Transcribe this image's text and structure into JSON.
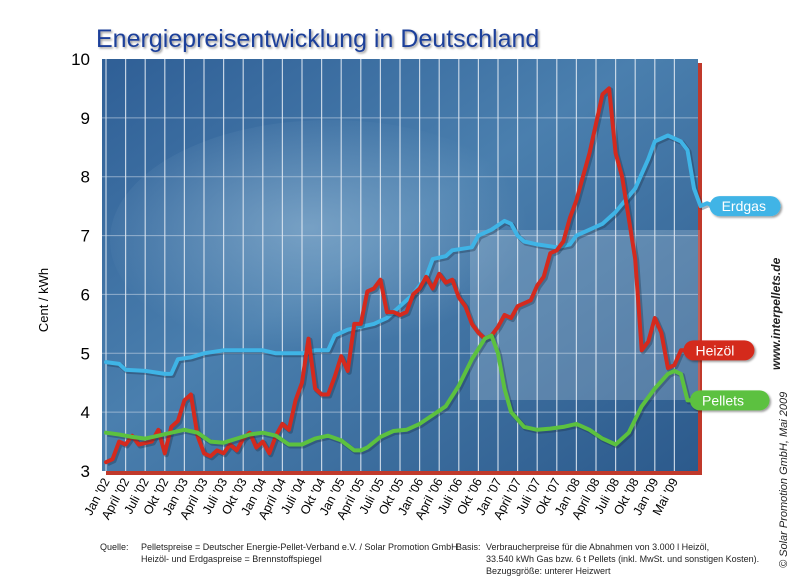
{
  "chart_data": {
    "type": "line",
    "title": "Energiepreisentwicklung in Deutschland",
    "ylabel": "Cent / kWh",
    "xlabel": "",
    "ylim": [
      3,
      10
    ],
    "yticks": [
      "3",
      "4",
      "5",
      "6",
      "7",
      "8",
      "9",
      "10"
    ],
    "grid": true,
    "x_ticks": [
      "Jan '02",
      "April '02",
      "Juli '02",
      "Okt '02",
      "Jan '03",
      "April '03",
      "Juli '03",
      "Okt '03",
      "Jan '04",
      "April '04",
      "Juli '04",
      "Okt '04",
      "Jan '05",
      "April '05",
      "Juli '05",
      "Okt '05",
      "Jan '06",
      "April '06",
      "Juli '06",
      "Okt '06",
      "Jan '07",
      "April '07",
      "Juli '07",
      "Okt '07",
      "Jan '08",
      "April '08",
      "Juli '08",
      "Okt '08",
      "Jan '09",
      "Mai '09"
    ],
    "series": [
      {
        "name": "Erdgas",
        "color": "#3fb4e6",
        "values": [
          [
            0,
            4.85
          ],
          [
            2,
            4.82
          ],
          [
            3,
            4.72
          ],
          [
            6,
            4.7
          ],
          [
            9,
            4.65
          ],
          [
            10,
            4.65
          ],
          [
            11,
            4.9
          ],
          [
            13,
            4.93
          ],
          [
            15,
            5.0
          ],
          [
            18,
            5.05
          ],
          [
            24,
            5.05
          ],
          [
            26,
            5.0
          ],
          [
            30,
            5.0
          ],
          [
            32,
            5.05
          ],
          [
            34,
            5.05
          ],
          [
            35,
            5.3
          ],
          [
            37,
            5.4
          ],
          [
            39,
            5.45
          ],
          [
            41,
            5.5
          ],
          [
            43,
            5.6
          ],
          [
            45,
            5.8
          ],
          [
            47,
            6.0
          ],
          [
            49,
            6.3
          ],
          [
            50,
            6.6
          ],
          [
            52,
            6.65
          ],
          [
            53,
            6.75
          ],
          [
            56,
            6.8
          ],
          [
            57,
            7.0
          ],
          [
            59,
            7.1
          ],
          [
            61,
            7.25
          ],
          [
            62,
            7.2
          ],
          [
            63,
            7.0
          ],
          [
            64,
            6.9
          ],
          [
            66,
            6.85
          ],
          [
            69,
            6.8
          ],
          [
            71,
            6.85
          ],
          [
            72,
            7.0
          ],
          [
            74,
            7.1
          ],
          [
            76,
            7.2
          ],
          [
            78,
            7.4
          ],
          [
            81,
            7.8
          ],
          [
            83,
            8.3
          ],
          [
            84,
            8.6
          ],
          [
            86,
            8.7
          ],
          [
            88,
            8.6
          ],
          [
            89,
            8.45
          ],
          [
            90,
            7.8
          ],
          [
            91,
            7.5
          ],
          [
            92,
            7.55
          ],
          [
            93,
            7.5
          ]
        ]
      },
      {
        "name": "Heizöl",
        "color": "#d42a1e",
        "values": [
          [
            0,
            3.15
          ],
          [
            1,
            3.2
          ],
          [
            2,
            3.5
          ],
          [
            3,
            3.45
          ],
          [
            4,
            3.6
          ],
          [
            5,
            3.45
          ],
          [
            7,
            3.5
          ],
          [
            8,
            3.7
          ],
          [
            9,
            3.3
          ],
          [
            10,
            3.75
          ],
          [
            11,
            3.85
          ],
          [
            12,
            4.2
          ],
          [
            13,
            4.3
          ],
          [
            14,
            3.6
          ],
          [
            15,
            3.3
          ],
          [
            16,
            3.25
          ],
          [
            17,
            3.35
          ],
          [
            18,
            3.3
          ],
          [
            19,
            3.45
          ],
          [
            20,
            3.35
          ],
          [
            21,
            3.55
          ],
          [
            22,
            3.65
          ],
          [
            23,
            3.4
          ],
          [
            24,
            3.5
          ],
          [
            25,
            3.3
          ],
          [
            26,
            3.6
          ],
          [
            27,
            3.8
          ],
          [
            28,
            3.7
          ],
          [
            29,
            4.2
          ],
          [
            30,
            4.5
          ],
          [
            31,
            5.25
          ],
          [
            32,
            4.4
          ],
          [
            33,
            4.3
          ],
          [
            34,
            4.3
          ],
          [
            35,
            4.6
          ],
          [
            36,
            4.95
          ],
          [
            37,
            4.7
          ],
          [
            38,
            5.5
          ],
          [
            39,
            5.5
          ],
          [
            40,
            6.05
          ],
          [
            41,
            6.1
          ],
          [
            42,
            6.25
          ],
          [
            43,
            5.7
          ],
          [
            44,
            5.7
          ],
          [
            45,
            5.65
          ],
          [
            46,
            5.7
          ],
          [
            47,
            6.0
          ],
          [
            48,
            6.1
          ],
          [
            49,
            6.3
          ],
          [
            50,
            6.1
          ],
          [
            51,
            6.35
          ],
          [
            52,
            6.2
          ],
          [
            53,
            6.25
          ],
          [
            54,
            5.95
          ],
          [
            55,
            5.8
          ],
          [
            56,
            5.5
          ],
          [
            57,
            5.35
          ],
          [
            58,
            5.25
          ],
          [
            59,
            5.3
          ],
          [
            60,
            5.45
          ],
          [
            61,
            5.65
          ],
          [
            62,
            5.6
          ],
          [
            63,
            5.8
          ],
          [
            64,
            5.85
          ],
          [
            65,
            5.9
          ],
          [
            66,
            6.15
          ],
          [
            67,
            6.3
          ],
          [
            68,
            6.7
          ],
          [
            69,
            6.75
          ],
          [
            70,
            6.9
          ],
          [
            71,
            7.3
          ],
          [
            72,
            7.6
          ],
          [
            73,
            8.0
          ],
          [
            74,
            8.4
          ],
          [
            75,
            8.9
          ],
          [
            76,
            9.4
          ],
          [
            77,
            9.5
          ],
          [
            78,
            8.4
          ],
          [
            79,
            8.0
          ],
          [
            80,
            7.3
          ],
          [
            81,
            6.6
          ],
          [
            82,
            5.05
          ],
          [
            83,
            5.2
          ],
          [
            84,
            5.6
          ],
          [
            85,
            5.35
          ],
          [
            86,
            4.75
          ],
          [
            87,
            4.8
          ],
          [
            88,
            5.05
          ],
          [
            89,
            5.05
          ]
        ]
      },
      {
        "name": "Pellets",
        "color": "#5cc13f",
        "values": [
          [
            0,
            3.65
          ],
          [
            2,
            3.62
          ],
          [
            4,
            3.58
          ],
          [
            6,
            3.55
          ],
          [
            8,
            3.6
          ],
          [
            10,
            3.65
          ],
          [
            12,
            3.7
          ],
          [
            14,
            3.65
          ],
          [
            16,
            3.5
          ],
          [
            18,
            3.48
          ],
          [
            20,
            3.55
          ],
          [
            22,
            3.62
          ],
          [
            24,
            3.65
          ],
          [
            26,
            3.6
          ],
          [
            28,
            3.45
          ],
          [
            30,
            3.45
          ],
          [
            32,
            3.55
          ],
          [
            34,
            3.6
          ],
          [
            36,
            3.52
          ],
          [
            38,
            3.35
          ],
          [
            39,
            3.35
          ],
          [
            40,
            3.4
          ],
          [
            42,
            3.58
          ],
          [
            44,
            3.68
          ],
          [
            46,
            3.7
          ],
          [
            48,
            3.8
          ],
          [
            50,
            3.95
          ],
          [
            52,
            4.1
          ],
          [
            54,
            4.45
          ],
          [
            56,
            4.9
          ],
          [
            58,
            5.25
          ],
          [
            59,
            5.3
          ],
          [
            60,
            5.0
          ],
          [
            61,
            4.4
          ],
          [
            62,
            4.0
          ],
          [
            64,
            3.75
          ],
          [
            66,
            3.7
          ],
          [
            68,
            3.72
          ],
          [
            70,
            3.75
          ],
          [
            72,
            3.8
          ],
          [
            74,
            3.7
          ],
          [
            76,
            3.55
          ],
          [
            78,
            3.45
          ],
          [
            80,
            3.65
          ],
          [
            82,
            4.1
          ],
          [
            84,
            4.4
          ],
          [
            86,
            4.65
          ],
          [
            87,
            4.7
          ],
          [
            88,
            4.65
          ],
          [
            89,
            4.2
          ],
          [
            90,
            4.2
          ]
        ]
      }
    ],
    "labels": {
      "erdgas": "Erdgas",
      "heizoel": "Heizöl",
      "pellets": "Pellets"
    }
  },
  "footer": {
    "source_label": "Quelle:",
    "source_line1": "Pelletspreise = Deutscher Energie-Pellet-Verband e.V. / Solar Promotion GmbH",
    "source_line2": "Heizöl- und Erdgaspreise = Brennstoffspiegel",
    "basis_label": "Basis:",
    "basis_line1": "Verbraucherpreise für die Abnahmen von 3.000 l Heizöl,",
    "basis_line2": "33.540 kWh Gas bzw. 6 t Pellets (inkl. MwSt. und sonstigen Kosten).",
    "basis_line3": "Bezugsgröße: unterer Heizwert"
  },
  "side": {
    "website": "www.interpellets.de",
    "copyright": "© Solar Promotion GmbH, Mai 2009"
  }
}
